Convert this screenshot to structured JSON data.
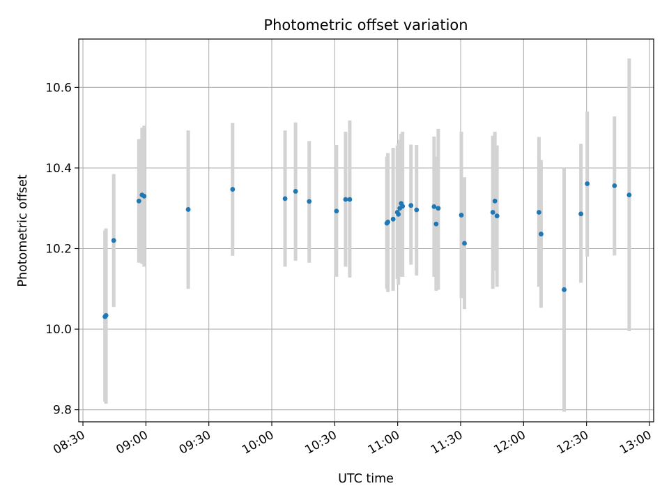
{
  "chart_data": {
    "type": "scatter",
    "title": "Photometric offset variation",
    "xlabel": "UTC time",
    "ylabel": "Photometric offset",
    "xlim": [
      "08:28",
      "13:02"
    ],
    "ylim": [
      9.77,
      10.72
    ],
    "grid": true,
    "x_ticks": [
      "08:30",
      "09:00",
      "09:30",
      "10:00",
      "10:30",
      "11:00",
      "11:30",
      "12:00",
      "12:30",
      "13:00"
    ],
    "y_ticks": [
      "9.8",
      "10.0",
      "10.2",
      "10.4",
      "10.6"
    ],
    "marker_color": "#1f77b4",
    "errorbar_color": "#d3d3d3",
    "points": [
      {
        "t": "08:40:30",
        "y": 10.031,
        "lo": 9.82,
        "hi": 10.245
      },
      {
        "t": "08:41:00",
        "y": 10.034,
        "lo": 9.815,
        "hi": 10.25
      },
      {
        "t": "08:44:40",
        "y": 10.22,
        "lo": 10.055,
        "hi": 10.385
      },
      {
        "t": "08:56:40",
        "y": 10.318,
        "lo": 10.165,
        "hi": 10.472
      },
      {
        "t": "08:58:10",
        "y": 10.333,
        "lo": 10.162,
        "hi": 10.5
      },
      {
        "t": "08:59:10",
        "y": 10.33,
        "lo": 10.155,
        "hi": 10.505
      },
      {
        "t": "09:20:10",
        "y": 10.297,
        "lo": 10.1,
        "hi": 10.493
      },
      {
        "t": "09:41:20",
        "y": 10.347,
        "lo": 10.182,
        "hi": 10.512
      },
      {
        "t": "10:06:20",
        "y": 10.324,
        "lo": 10.155,
        "hi": 10.493
      },
      {
        "t": "10:11:20",
        "y": 10.342,
        "lo": 10.17,
        "hi": 10.513
      },
      {
        "t": "10:17:50",
        "y": 10.317,
        "lo": 10.165,
        "hi": 10.467
      },
      {
        "t": "10:30:50",
        "y": 10.293,
        "lo": 10.13,
        "hi": 10.457
      },
      {
        "t": "10:35:10",
        "y": 10.322,
        "lo": 10.155,
        "hi": 10.49
      },
      {
        "t": "10:37:10",
        "y": 10.322,
        "lo": 10.128,
        "hi": 10.518
      },
      {
        "t": "10:54:50",
        "y": 10.263,
        "lo": 10.1,
        "hi": 10.428
      },
      {
        "t": "10:55:20",
        "y": 10.266,
        "lo": 10.092,
        "hi": 10.437
      },
      {
        "t": "10:57:50",
        "y": 10.273,
        "lo": 10.095,
        "hi": 10.45
      },
      {
        "t": "10:59:50",
        "y": 10.29,
        "lo": 10.125,
        "hi": 10.455
      },
      {
        "t": "11:00:20",
        "y": 10.285,
        "lo": 10.11,
        "hi": 10.46
      },
      {
        "t": "11:01:00",
        "y": 10.3,
        "lo": 10.13,
        "hi": 10.47
      },
      {
        "t": "11:01:40",
        "y": 10.312,
        "lo": 10.135,
        "hi": 10.485
      },
      {
        "t": "11:02:20",
        "y": 10.305,
        "lo": 10.13,
        "hi": 10.49
      },
      {
        "t": "11:06:20",
        "y": 10.307,
        "lo": 10.16,
        "hi": 10.458
      },
      {
        "t": "11:09:00",
        "y": 10.296,
        "lo": 10.133,
        "hi": 10.457
      },
      {
        "t": "11:17:20",
        "y": 10.304,
        "lo": 10.13,
        "hi": 10.478
      },
      {
        "t": "11:18:20",
        "y": 10.261,
        "lo": 10.095,
        "hi": 10.428
      },
      {
        "t": "11:19:20",
        "y": 10.3,
        "lo": 10.098,
        "hi": 10.497
      },
      {
        "t": "11:30:20",
        "y": 10.283,
        "lo": 10.077,
        "hi": 10.49
      },
      {
        "t": "11:31:50",
        "y": 10.213,
        "lo": 10.05,
        "hi": 10.377
      },
      {
        "t": "11:45:20",
        "y": 10.29,
        "lo": 10.1,
        "hi": 10.48
      },
      {
        "t": "11:46:20",
        "y": 10.318,
        "lo": 10.145,
        "hi": 10.49
      },
      {
        "t": "11:47:20",
        "y": 10.281,
        "lo": 10.105,
        "hi": 10.456
      },
      {
        "t": "12:07:20",
        "y": 10.29,
        "lo": 10.105,
        "hi": 10.477
      },
      {
        "t": "12:08:20",
        "y": 10.236,
        "lo": 10.053,
        "hi": 10.42
      },
      {
        "t": "12:19:20",
        "y": 10.098,
        "lo": 9.795,
        "hi": 10.4
      },
      {
        "t": "12:27:20",
        "y": 10.286,
        "lo": 10.115,
        "hi": 10.46
      },
      {
        "t": "12:30:20",
        "y": 10.361,
        "lo": 10.18,
        "hi": 10.54
      },
      {
        "t": "12:43:20",
        "y": 10.356,
        "lo": 10.183,
        "hi": 10.528
      },
      {
        "t": "12:50:20",
        "y": 10.333,
        "lo": 9.995,
        "hi": 10.672
      }
    ]
  }
}
